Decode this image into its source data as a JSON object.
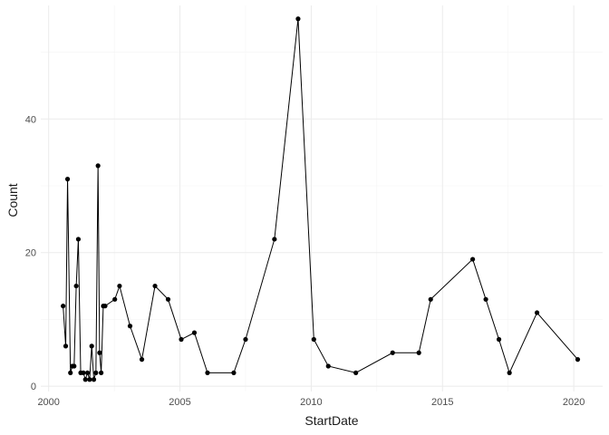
{
  "chart_data": {
    "type": "line",
    "xlabel": "StartDate",
    "ylabel": "Count",
    "xlim": [
      1999.7,
      2021.1
    ],
    "ylim": [
      -0.8,
      57
    ],
    "xticks": [
      2000,
      2005,
      2010,
      2015,
      2020
    ],
    "yticks": [
      0,
      20,
      40
    ],
    "grid": true,
    "legend": "none",
    "colors": {
      "line": "#000000",
      "grid": "#ebebeb"
    },
    "series": [
      {
        "x": [
          2000.55,
          2000.65,
          2000.72,
          2000.83,
          2000.9,
          2000.97,
          2001.05,
          2001.13,
          2001.22,
          2001.32,
          2001.4,
          2001.48,
          2001.56,
          2001.64,
          2001.72,
          2001.8,
          2001.88,
          2001.94,
          2002.0,
          2002.08,
          2002.15,
          2002.52,
          2002.7,
          2003.1,
          2003.55,
          2004.05,
          2004.55,
          2005.05,
          2005.55,
          2006.05,
          2007.05,
          2007.5,
          2008.6,
          2009.5,
          2010.1,
          2010.65,
          2011.7,
          2013.1,
          2014.1,
          2014.55,
          2016.15,
          2016.65,
          2017.15,
          2017.55,
          2018.6,
          2020.15
        ],
        "y": [
          12,
          6,
          31,
          2,
          3,
          3,
          15,
          22,
          2,
          2,
          1,
          2,
          1,
          6,
          1,
          2,
          33,
          5,
          2,
          12,
          12,
          13,
          15,
          9,
          4,
          15,
          13,
          7,
          8,
          2,
          2,
          7,
          22,
          55,
          7,
          3,
          2,
          5,
          5,
          13,
          19,
          13,
          7,
          2,
          11,
          4
        ]
      }
    ]
  }
}
